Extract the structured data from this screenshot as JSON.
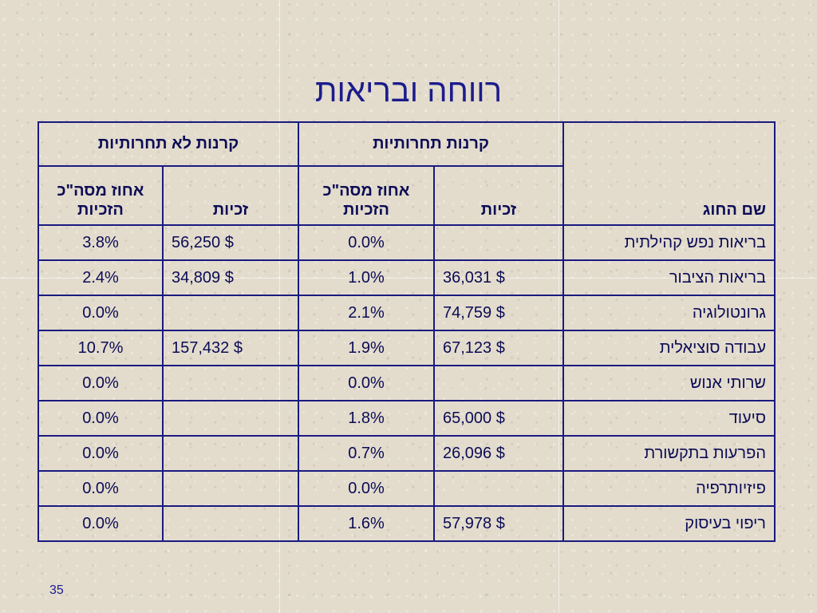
{
  "slide": {
    "title": "רווחה ובריאות",
    "page_number": "35"
  },
  "table": {
    "law_header": "שם החוג",
    "competitive_group": "קרנות תחרותיות",
    "noncompetitive_group": "קרנות לא תחרותיות",
    "sub_amount": "זכיות",
    "sub_percent_line1": "אחוז מסה\"כ",
    "sub_percent_line2": "הזכיות",
    "rows": [
      {
        "name": "בריאות נפש קהילתית",
        "comp_amount": "",
        "comp_pct": "0.0%",
        "noncomp_amount": "$ 56,250",
        "noncomp_pct": "3.8%"
      },
      {
        "name": "בריאות הציבור",
        "comp_amount": "$ 36,031",
        "comp_pct": "1.0%",
        "noncomp_amount": "$ 34,809",
        "noncomp_pct": "2.4%"
      },
      {
        "name": "גרונטולוגיה",
        "comp_amount": "$ 74,759",
        "comp_pct": "2.1%",
        "noncomp_amount": "",
        "noncomp_pct": "0.0%"
      },
      {
        "name": "עבודה סוציאלית",
        "comp_amount": "$ 67,123",
        "comp_pct": "1.9%",
        "noncomp_amount": "$ 157,432",
        "noncomp_pct": "10.7%"
      },
      {
        "name": "שרותי אנוש",
        "comp_amount": "",
        "comp_pct": "0.0%",
        "noncomp_amount": "",
        "noncomp_pct": "0.0%"
      },
      {
        "name": "סיעוד",
        "comp_amount": "$ 65,000",
        "comp_pct": "1.8%",
        "noncomp_amount": "",
        "noncomp_pct": "0.0%"
      },
      {
        "name": "הפרעות בתקשורת",
        "comp_amount": "$ 26,096",
        "comp_pct": "0.7%",
        "noncomp_amount": "",
        "noncomp_pct": "0.0%"
      },
      {
        "name": "פיזיותרפיה",
        "comp_amount": "",
        "comp_pct": "0.0%",
        "noncomp_amount": "",
        "noncomp_pct": "0.0%"
      },
      {
        "name": "ריפוי בעיסוק",
        "comp_amount": "$ 57,978",
        "comp_pct": "1.6%",
        "noncomp_amount": "",
        "noncomp_pct": "0.0%"
      }
    ]
  }
}
